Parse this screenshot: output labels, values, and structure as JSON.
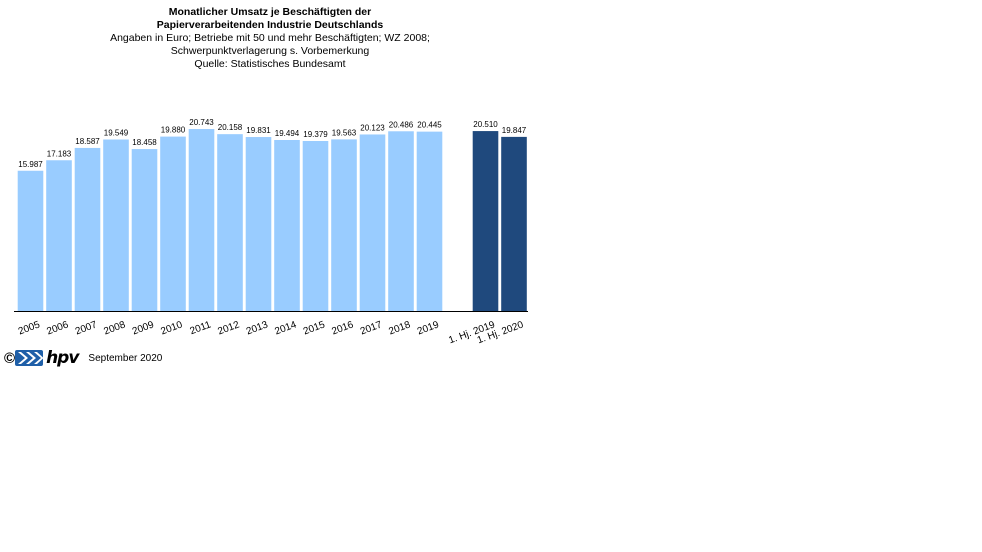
{
  "chart_data": {
    "type": "bar",
    "title": "Monatlicher Umsatz je Beschäftigten der",
    "title2": "Papierverarbeitenden Industrie Deutschlands",
    "subtitle": [
      "Angaben in Euro; Betriebe mit 50 und mehr Beschäftigten; WZ 2008;",
      "Schwerpunktverlagerung  s. Vorbemerkung",
      "Quelle: Statistisches Bundesamt"
    ],
    "categories": [
      "2005",
      "2006",
      "2007",
      "2008",
      "2009",
      "2010",
      "2011",
      "2012",
      "2013",
      "2014",
      "2015",
      "2016",
      "2017",
      "2018",
      "2019",
      "1. Hj. 2019",
      "1. Hj. 2020"
    ],
    "values": [
      15987,
      17183,
      18587,
      19549,
      18458,
      19880,
      20743,
      20158,
      19831,
      19494,
      19379,
      19563,
      20123,
      20486,
      20445,
      20510,
      19847
    ],
    "value_labels": [
      "15.987",
      "17.183",
      "18.587",
      "19.549",
      "18.458",
      "19.880",
      "20.743",
      "20.158",
      "19.831",
      "19.494",
      "19.379",
      "19.563",
      "20.123",
      "20.486",
      "20.445",
      "20.510",
      "19.847"
    ],
    "ylim": [
      0,
      22000
    ],
    "xlabel": "",
    "ylabel": "",
    "grid": false,
    "colors": {
      "annual": "#99ccff",
      "halfyear": "#1f497d"
    }
  },
  "footer": {
    "copyright_symbol": "©",
    "logo_text": "hpv",
    "date": "September 2020"
  }
}
